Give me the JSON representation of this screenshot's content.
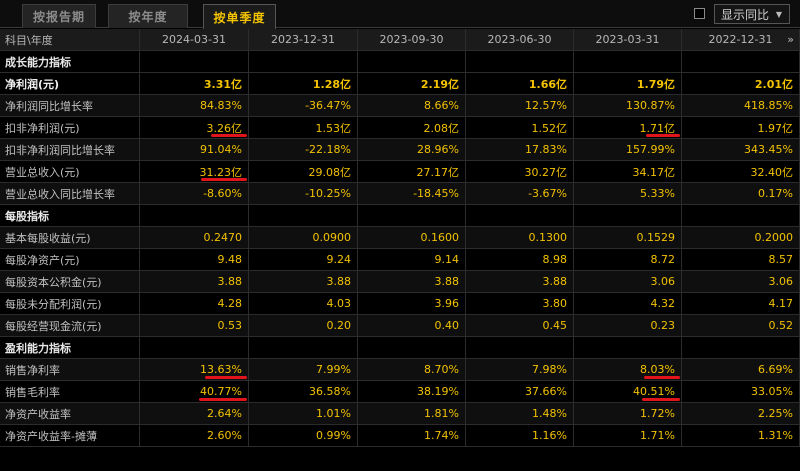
{
  "tabs": [
    {
      "label": "按报告期",
      "active": false
    },
    {
      "label": "按年度",
      "active": false
    },
    {
      "label": "按单季度",
      "active": true
    }
  ],
  "compare_toggle": {
    "label": "显示同比",
    "checked": false
  },
  "table": {
    "corner_label": "科目\\年度",
    "columns": [
      "2024-03-31",
      "2023-12-31",
      "2023-09-30",
      "2023-06-30",
      "2023-03-31",
      "2022-12-31"
    ],
    "rows": [
      {
        "type": "section",
        "label": "成长能力指标",
        "values": []
      },
      {
        "type": "data",
        "bold": true,
        "label": "净利润(元)",
        "values": [
          "3.31亿",
          "1.28亿",
          "2.19亿",
          "1.66亿",
          "1.79亿",
          "2.01亿"
        ]
      },
      {
        "type": "data",
        "label": "净利润同比增长率",
        "values": [
          "84.83%",
          "-36.47%",
          "8.66%",
          "12.57%",
          "130.87%",
          "418.85%"
        ]
      },
      {
        "type": "data",
        "label": "扣非净利润(元)",
        "values": [
          "3.26亿",
          "1.53亿",
          "2.08亿",
          "1.52亿",
          "1.71亿",
          "1.97亿"
        ]
      },
      {
        "type": "data",
        "label": "扣非净利润同比增长率",
        "values": [
          "91.04%",
          "-22.18%",
          "28.96%",
          "17.83%",
          "157.99%",
          "343.45%"
        ]
      },
      {
        "type": "data",
        "label": "营业总收入(元)",
        "values": [
          "31.23亿",
          "29.08亿",
          "27.17亿",
          "30.27亿",
          "34.17亿",
          "32.40亿"
        ]
      },
      {
        "type": "data",
        "label": "营业总收入同比增长率",
        "values": [
          "-8.60%",
          "-10.25%",
          "-18.45%",
          "-3.67%",
          "5.33%",
          "0.17%"
        ]
      },
      {
        "type": "section",
        "label": "每股指标",
        "values": []
      },
      {
        "type": "data",
        "label": "基本每股收益(元)",
        "values": [
          "0.2470",
          "0.0900",
          "0.1600",
          "0.1300",
          "0.1529",
          "0.2000"
        ]
      },
      {
        "type": "data",
        "label": "每股净资产(元)",
        "values": [
          "9.48",
          "9.24",
          "9.14",
          "8.98",
          "8.72",
          "8.57"
        ]
      },
      {
        "type": "data",
        "label": "每股资本公积金(元)",
        "values": [
          "3.88",
          "3.88",
          "3.88",
          "3.88",
          "3.06",
          "3.06"
        ]
      },
      {
        "type": "data",
        "label": "每股未分配利润(元)",
        "values": [
          "4.28",
          "4.03",
          "3.96",
          "3.80",
          "4.32",
          "4.17"
        ]
      },
      {
        "type": "data",
        "label": "每股经营现金流(元)",
        "values": [
          "0.53",
          "0.20",
          "0.40",
          "0.45",
          "0.23",
          "0.52"
        ]
      },
      {
        "type": "section",
        "label": "盈利能力指标",
        "values": []
      },
      {
        "type": "data",
        "label": "销售净利率",
        "values": [
          "13.63%",
          "7.99%",
          "8.70%",
          "7.98%",
          "8.03%",
          "6.69%"
        ]
      },
      {
        "type": "data",
        "label": "销售毛利率",
        "values": [
          "40.77%",
          "36.58%",
          "38.19%",
          "37.66%",
          "40.51%",
          "33.05%"
        ]
      },
      {
        "type": "data",
        "label": "净资产收益率",
        "values": [
          "2.64%",
          "1.01%",
          "1.81%",
          "1.48%",
          "1.72%",
          "2.25%"
        ]
      },
      {
        "type": "data",
        "label": "净资产收益率-摊薄",
        "values": [
          "2.60%",
          "0.99%",
          "1.74%",
          "1.16%",
          "1.71%",
          "1.31%"
        ]
      }
    ]
  },
  "colors": {
    "accent": "#f2c200",
    "annotation": "#e0141a",
    "background": "#000000"
  }
}
